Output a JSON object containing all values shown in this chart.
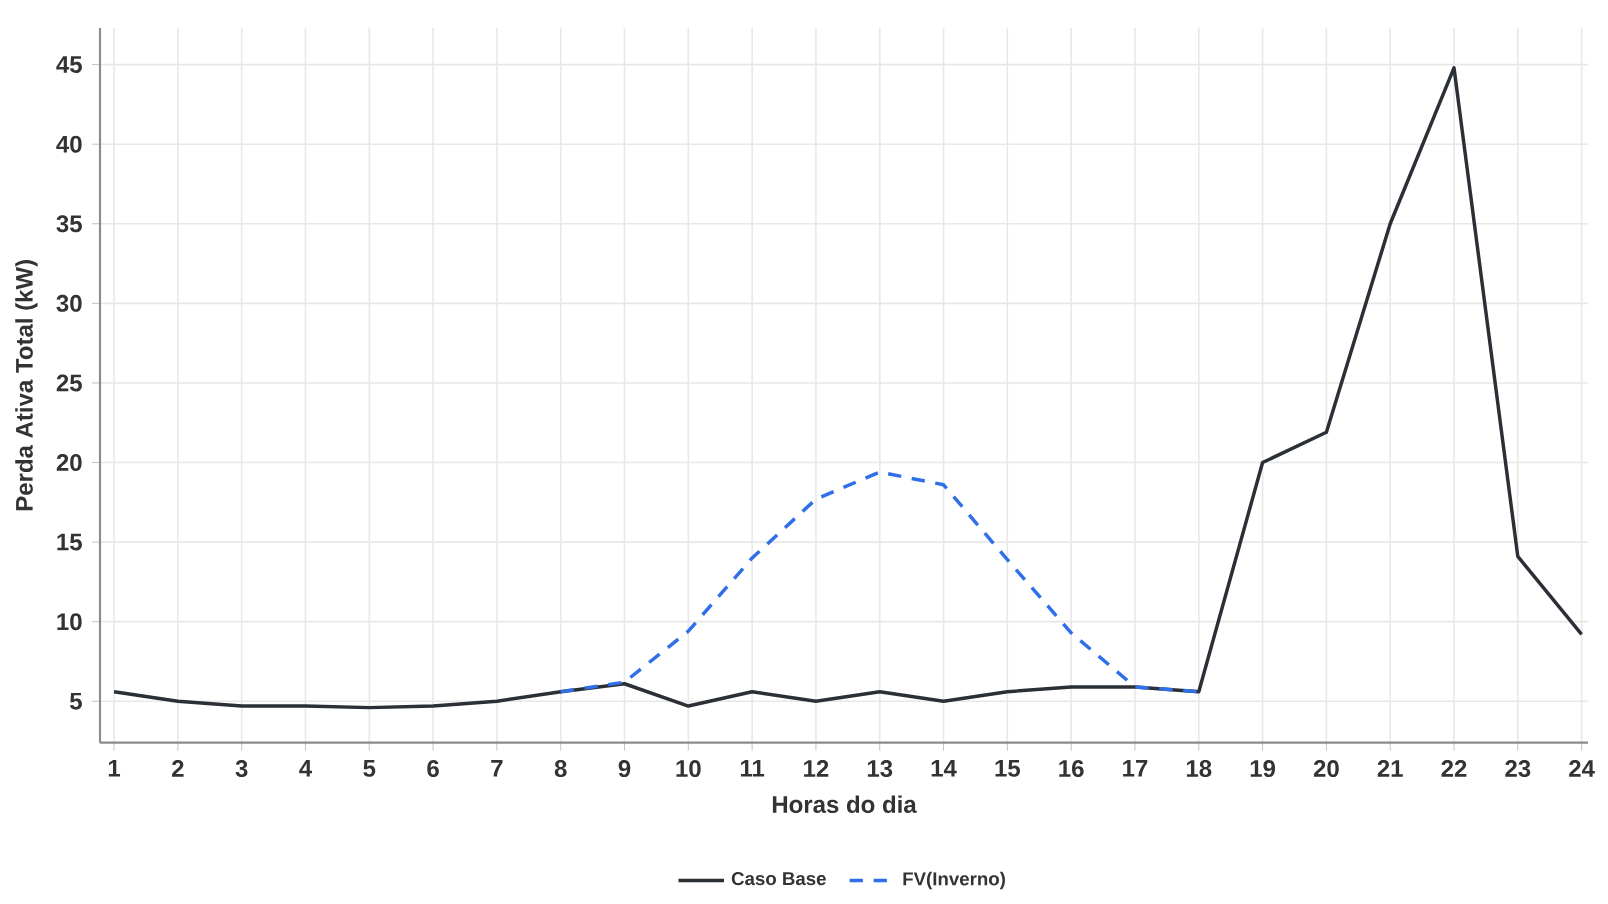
{
  "chart_data": {
    "type": "line",
    "xlabel": "Horas do dia",
    "ylabel": "Perda Ativa Total (kW)",
    "x": [
      1,
      2,
      3,
      4,
      5,
      6,
      7,
      8,
      9,
      10,
      11,
      12,
      13,
      14,
      15,
      16,
      17,
      18,
      19,
      20,
      21,
      22,
      23,
      24
    ],
    "series": [
      {
        "name": "Caso Base",
        "color": "#2b2f36",
        "line_style": "solid",
        "values": [
          5.6,
          5.0,
          4.7,
          4.7,
          4.6,
          4.7,
          5.0,
          5.6,
          6.1,
          4.7,
          5.6,
          5.0,
          5.6,
          5.0,
          5.6,
          5.9,
          5.9,
          5.6,
          20.0,
          21.9,
          35.0,
          44.8,
          14.1,
          9.2
        ]
      },
      {
        "name": "FV(Inverno)",
        "color": "#2f6fe8",
        "line_style": "dashed",
        "values": [
          null,
          null,
          null,
          null,
          null,
          null,
          null,
          5.6,
          6.2,
          9.4,
          14.0,
          17.7,
          19.4,
          18.6,
          13.9,
          9.3,
          5.9,
          5.6,
          null,
          null,
          null,
          null,
          null,
          null
        ]
      }
    ],
    "xlim": [
      0.78,
      24.1
    ],
    "ylim": [
      2.4,
      47.3
    ],
    "xticks": [
      1,
      2,
      3,
      4,
      5,
      6,
      7,
      8,
      9,
      10,
      11,
      12,
      13,
      14,
      15,
      16,
      17,
      18,
      19,
      20,
      21,
      22,
      23,
      24
    ],
    "yticks": [
      5,
      10,
      15,
      20,
      25,
      30,
      35,
      40,
      45
    ],
    "grid": true,
    "legend": "bottom",
    "marker": "none"
  }
}
